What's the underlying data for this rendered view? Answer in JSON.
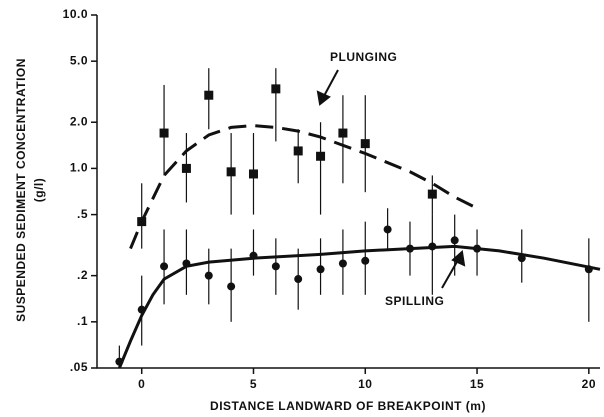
{
  "chart_data": {
    "type": "scatter",
    "x_label": "DISTANCE LANDWARD OF BREAKPOINT (m)",
    "y_label": "SUSPENDED SEDIMENT CONCENTRATION",
    "y_unit": "(g/l)",
    "log_y": true,
    "xlim": [
      -2,
      20.5
    ],
    "ylim": [
      0.05,
      10
    ],
    "xticks": [
      0,
      5,
      10,
      15,
      20
    ],
    "yticks": [
      {
        "value": 10,
        "label": "10.0"
      },
      {
        "value": 5,
        "label": "5.0"
      },
      {
        "value": 2,
        "label": "2.0"
      },
      {
        "value": 1,
        "label": "1.0"
      },
      {
        "value": 0.5,
        "label": ".5"
      },
      {
        "value": 0.2,
        "label": ".2"
      },
      {
        "value": 0.1,
        "label": ".1"
      },
      {
        "value": 0.05,
        "label": ".05"
      }
    ],
    "series": [
      {
        "name": "PLUNGING",
        "marker": "square",
        "color": "#111111",
        "line_style": "dashed",
        "x": [
          0,
          1,
          2,
          3,
          4,
          5,
          6,
          7,
          8,
          9,
          10,
          13
        ],
        "values": [
          0.45,
          1.7,
          1.0,
          3.0,
          0.95,
          0.92,
          3.3,
          1.3,
          1.2,
          1.7,
          1.45,
          0.68
        ],
        "lower": [
          0.3,
          0.9,
          0.6,
          1.8,
          0.5,
          0.5,
          1.5,
          0.8,
          0.5,
          0.8,
          0.7,
          0.5
        ],
        "upper": [
          0.8,
          3.5,
          1.7,
          4.5,
          1.7,
          1.7,
          4.5,
          1.8,
          2.0,
          3.0,
          3.0,
          0.9
        ],
        "fit_x": [
          -0.5,
          0,
          1,
          2,
          3,
          4,
          5,
          6,
          7,
          8,
          10,
          12,
          13,
          14,
          15
        ],
        "fit_values": [
          0.3,
          0.45,
          0.9,
          1.3,
          1.65,
          1.85,
          1.9,
          1.85,
          1.75,
          1.6,
          1.25,
          0.95,
          0.8,
          0.65,
          0.55
        ]
      },
      {
        "name": "SPILLING",
        "marker": "circle",
        "color": "#111111",
        "line_style": "solid",
        "x": [
          -1,
          0,
          1,
          2,
          3,
          4,
          5,
          6,
          7,
          8,
          9,
          10,
          11,
          12,
          13,
          14,
          15,
          17,
          20
        ],
        "values": [
          0.055,
          0.12,
          0.23,
          0.24,
          0.2,
          0.17,
          0.27,
          0.23,
          0.19,
          0.22,
          0.24,
          0.25,
          0.4,
          0.3,
          0.31,
          0.34,
          0.3,
          0.26,
          0.22
        ],
        "lower": [
          0.05,
          0.07,
          0.13,
          0.15,
          0.13,
          0.1,
          0.2,
          0.15,
          0.12,
          0.15,
          0.15,
          0.15,
          0.3,
          0.2,
          0.15,
          0.2,
          0.2,
          0.18,
          0.1
        ],
        "upper": [
          0.07,
          0.2,
          0.4,
          0.4,
          0.3,
          0.3,
          0.4,
          0.35,
          0.3,
          0.35,
          0.4,
          0.45,
          0.55,
          0.45,
          0.5,
          0.5,
          0.4,
          0.4,
          0.35
        ],
        "fit_x": [
          -1,
          -0.5,
          0,
          0.5,
          1,
          2,
          3,
          5,
          8,
          10,
          12,
          14,
          16,
          18,
          20.5
        ],
        "fit_values": [
          0.05,
          0.075,
          0.11,
          0.15,
          0.19,
          0.23,
          0.245,
          0.26,
          0.275,
          0.29,
          0.3,
          0.31,
          0.29,
          0.26,
          0.22
        ]
      }
    ]
  }
}
